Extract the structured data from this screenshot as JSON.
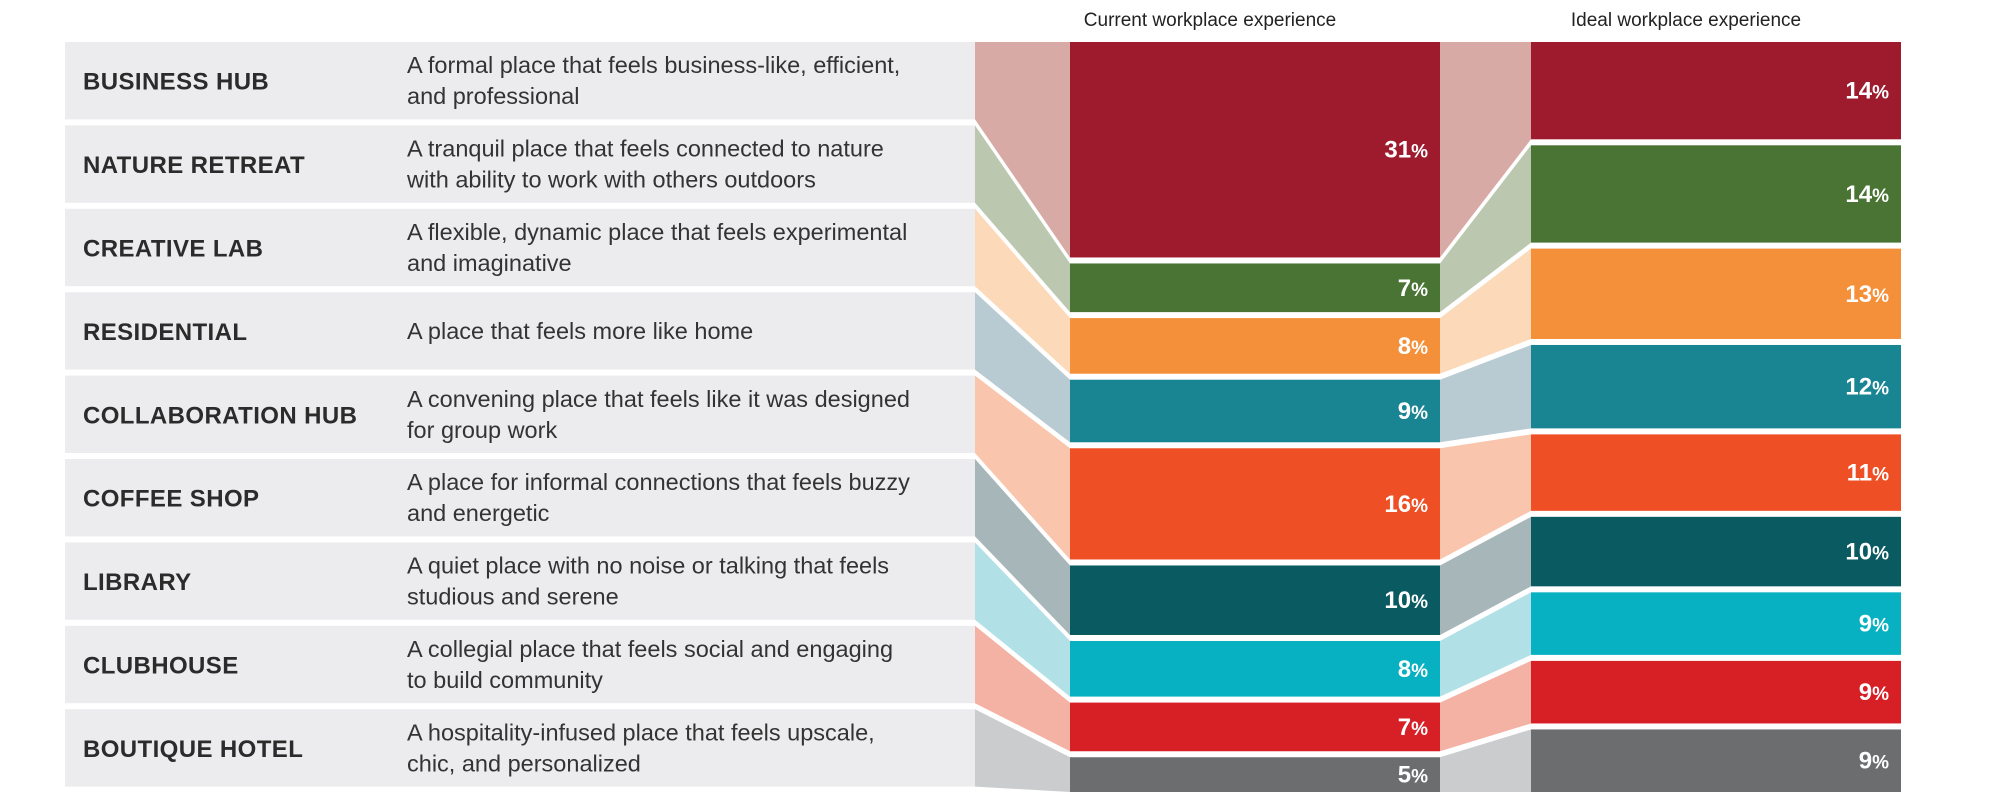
{
  "chart_data": {
    "type": "bar",
    "subtype": "stacked-100-percent-with-flow-connectors",
    "columns": [
      "Current workplace experience",
      "Ideal workplace experience"
    ],
    "percent_symbol": "%",
    "categories": [
      {
        "name": "BUSINESS HUB",
        "description": [
          "A formal place that feels business-like, efficient,",
          "and professional"
        ],
        "color": "#9d1b2d",
        "band_color": "#d8aaa5",
        "current": 31,
        "ideal": 14
      },
      {
        "name": "NATURE RETREAT",
        "description": [
          "A tranquil place that feels connected to nature",
          "with ability to work with others outdoors"
        ],
        "color": "#4a7434",
        "band_color": "#bcc7b0",
        "current": 7,
        "ideal": 14
      },
      {
        "name": "CREATIVE LAB",
        "description": [
          "A flexible, dynamic place that feels experimental",
          "and imaginative"
        ],
        "color": "#f4903a",
        "band_color": "#fbd9b9",
        "current": 8,
        "ideal": 13
      },
      {
        "name": "RESIDENTIAL",
        "description": [
          "A place that feels more like home"
        ],
        "color": "#198592",
        "band_color": "#b8cbd2",
        "current": 9,
        "ideal": 12
      },
      {
        "name": "COLLABORATION HUB",
        "description": [
          "A convening place that feels like it was designed",
          "for group work"
        ],
        "color": "#ee4f24",
        "band_color": "#f9c5ac",
        "current": 16,
        "ideal": 11
      },
      {
        "name": "COFFEE SHOP",
        "description": [
          "A place for informal connections that feels buzzy",
          "and energetic"
        ],
        "color": "#0a5b61",
        "band_color": "#a7b6b9",
        "current": 10,
        "ideal": 10
      },
      {
        "name": "LIBRARY",
        "description": [
          "A quiet place with no noise or talking that feels",
          "studious and serene"
        ],
        "color": "#07b1c2",
        "band_color": "#b1e1e7",
        "current": 8,
        "ideal": 9
      },
      {
        "name": "CLUBHOUSE",
        "description": [
          "A collegial place that feels social and engaging",
          "to build community"
        ],
        "color": "#d71f26",
        "band_color": "#f3b2a3",
        "current": 7,
        "ideal": 9
      },
      {
        "name": "BOUTIQUE HOTEL",
        "description": [
          "A hospitality-infused place that feels upscale,",
          "chic, and personalized"
        ],
        "color": "#6c6d6f",
        "band_color": "#cbcccd",
        "current": 5,
        "ideal": 9
      }
    ],
    "row_label_background": "#ececee",
    "legend": "none"
  }
}
